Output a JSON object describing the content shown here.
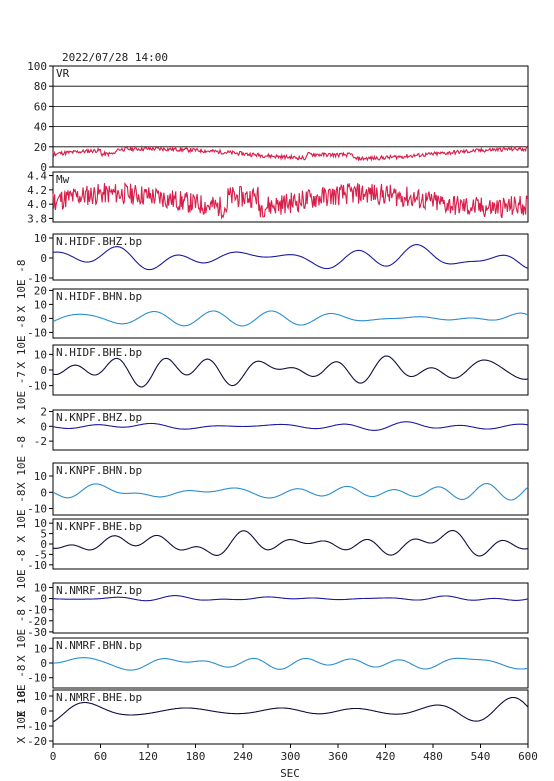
{
  "timestamp": "2022/07/28 14:00",
  "chart_data": {
    "type": "line",
    "xlabel": "SEC",
    "xlim": [
      0,
      600
    ],
    "xticks": [
      0,
      60,
      120,
      180,
      240,
      300,
      360,
      420,
      480,
      540,
      600
    ],
    "panels": [
      {
        "label": "VR",
        "ylim": [
          0,
          100
        ],
        "yticks": [
          0,
          20,
          40,
          60,
          80,
          100
        ],
        "grid": true,
        "color": "#d81e4a",
        "kind": "vr",
        "amp": 5,
        "base": 13
      },
      {
        "label": "Mw",
        "ylim": [
          3.75,
          4.45
        ],
        "yticks": [
          3.8,
          4.0,
          4.2,
          4.4
        ],
        "color": "#d81e4a",
        "kind": "mw",
        "amp": 0.25,
        "base": 4.05
      },
      {
        "label": "N.HIDF.BHZ.bp",
        "ylim": [
          -11,
          12
        ],
        "yticks": [
          -10,
          0,
          10
        ],
        "color": "#1c1ca0",
        "kind": "wave",
        "amp": 9,
        "seed": 1
      },
      {
        "label": "N.HIDF.BHN.bp",
        "ylim": [
          -14,
          21
        ],
        "yticks": [
          -10,
          0,
          10,
          20
        ],
        "color": "#2b8fd0",
        "kind": "wave",
        "amp": 10,
        "seed": 2
      },
      {
        "label": "N.HIDF.BHE.bp",
        "ylim": [
          -16,
          16
        ],
        "yticks": [
          -10,
          0,
          10
        ],
        "color": "#101040",
        "kind": "wave",
        "amp": 12,
        "seed": 3
      },
      {
        "label": "N.KNPF.BHZ.bp",
        "ylim": [
          -3.2,
          2.2
        ],
        "yticks": [
          -2,
          0,
          2
        ],
        "color": "#1c1ca0",
        "kind": "wave",
        "amp": 0.6,
        "seed": 4
      },
      {
        "label": "N.KNPF.BHN.bp",
        "ylim": [
          -14,
          18
        ],
        "yticks": [
          -10,
          0,
          10
        ],
        "color": "#2b8fd0",
        "kind": "wave",
        "amp": 9,
        "seed": 5
      },
      {
        "label": "N.KNPF.BHE.bp",
        "ylim": [
          -12,
          12
        ],
        "yticks": [
          -10,
          -5,
          0,
          5,
          10
        ],
        "color": "#101040",
        "kind": "wave",
        "amp": 8,
        "seed": 6
      },
      {
        "label": "N.NMRF.BHZ.bp",
        "ylim": [
          -31,
          14
        ],
        "yticks": [
          -30,
          -20,
          -10,
          0,
          10
        ],
        "color": "#1c1ca0",
        "kind": "wave",
        "amp": 3,
        "seed": 7
      },
      {
        "label": "N.NMRF.BHN.bp",
        "ylim": [
          -17,
          17
        ],
        "yticks": [
          -10,
          0,
          10
        ],
        "color": "#2b8fd0",
        "kind": "wave",
        "amp": 8,
        "seed": 8
      },
      {
        "label": "N.NMRF.BHE.bp",
        "ylim": [
          -22,
          14
        ],
        "yticks": [
          -20,
          -10,
          0,
          10
        ],
        "color": "#101040",
        "kind": "wave",
        "amp": 9,
        "seed": 9
      }
    ],
    "ylabels": [
      {
        "text": "X 10E -8",
        "panels": [
          2,
          3
        ]
      },
      {
        "text": "X 10E -8",
        "panels": [
          3,
          4
        ]
      },
      {
        "text": "X 10E -7",
        "panels": [
          4,
          5
        ]
      },
      {
        "text": "X 10E -8",
        "panels": [
          5,
          6
        ]
      },
      {
        "text": "X 10E -8",
        "panels": [
          6,
          7
        ]
      },
      {
        "text": "X 10E -8",
        "panels": [
          7,
          8
        ]
      },
      {
        "text": "X 10E -8",
        "panels": [
          8,
          9
        ]
      },
      {
        "text": "X 10E -8",
        "panels": [
          9,
          10
        ]
      },
      {
        "text": "X 10E -8",
        "panels": [
          10,
          10
        ]
      }
    ]
  }
}
